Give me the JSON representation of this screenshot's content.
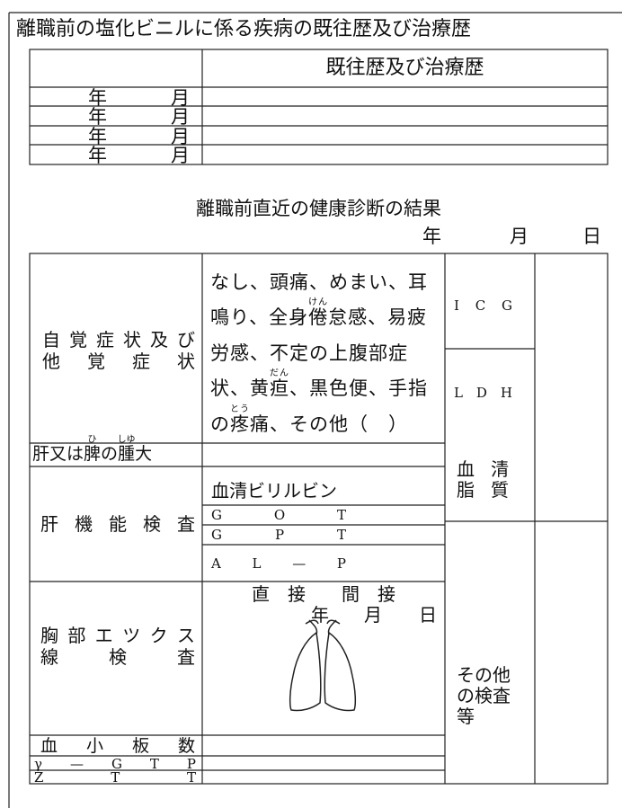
{
  "title": "離職前の塩化ビニルに係る疾病の既往歴及び治療歴",
  "history": {
    "header": "既往歴及び治療歴",
    "rows": [
      [
        "年",
        "月"
      ],
      [
        "年",
        "月"
      ],
      [
        "年",
        "月"
      ],
      [
        "年",
        "月"
      ]
    ]
  },
  "checkup": {
    "heading": "離職前直近の健康診断の結果",
    "date": [
      "年",
      "月",
      "日"
    ],
    "symptoms": {
      "label": [
        "自 覚 症 状 及 び",
        "他 覚 症 状"
      ],
      "lines": [
        "なし、頭痛、めまい、耳",
        [
          "鳴り、全身",
          {
            "base": "倦",
            "ruby": "けん"
          },
          "怠感、易疲"
        ],
        "労感、不定の上腹部症",
        [
          "状、黄",
          {
            "base": "疸",
            "ruby": "だん"
          },
          "、黒色便、手指"
        ],
        [
          "の",
          {
            "base": "疼",
            "ruby": "とう"
          },
          "痛、その他（　）"
        ]
      ]
    },
    "liver_spleen": [
      "肝又は",
      {
        "base": "脾",
        "ruby": "ひ"
      },
      "の",
      {
        "base": "腫",
        "ruby": "しゆ"
      },
      "大"
    ],
    "liver_function": {
      "label": "肝 機 能 検 査",
      "items": [
        "血清ビリルビン",
        "G O T",
        "G P T",
        "A L — P"
      ]
    },
    "chest_xray": {
      "label": [
        "胸 部 エ ツ ク ス",
        "線 検 査"
      ],
      "method": "直　接　　間　接",
      "date": [
        "年",
        "月",
        "日"
      ]
    },
    "platelets": "血 小 板 数",
    "ggtp": "γ — G T P",
    "ztt": "Z T T",
    "right": {
      "icg": "I C G",
      "ldh": "L D H",
      "lipid": [
        "血 清",
        "脂 質"
      ],
      "other": [
        "その他",
        "の検査",
        "等"
      ]
    }
  }
}
